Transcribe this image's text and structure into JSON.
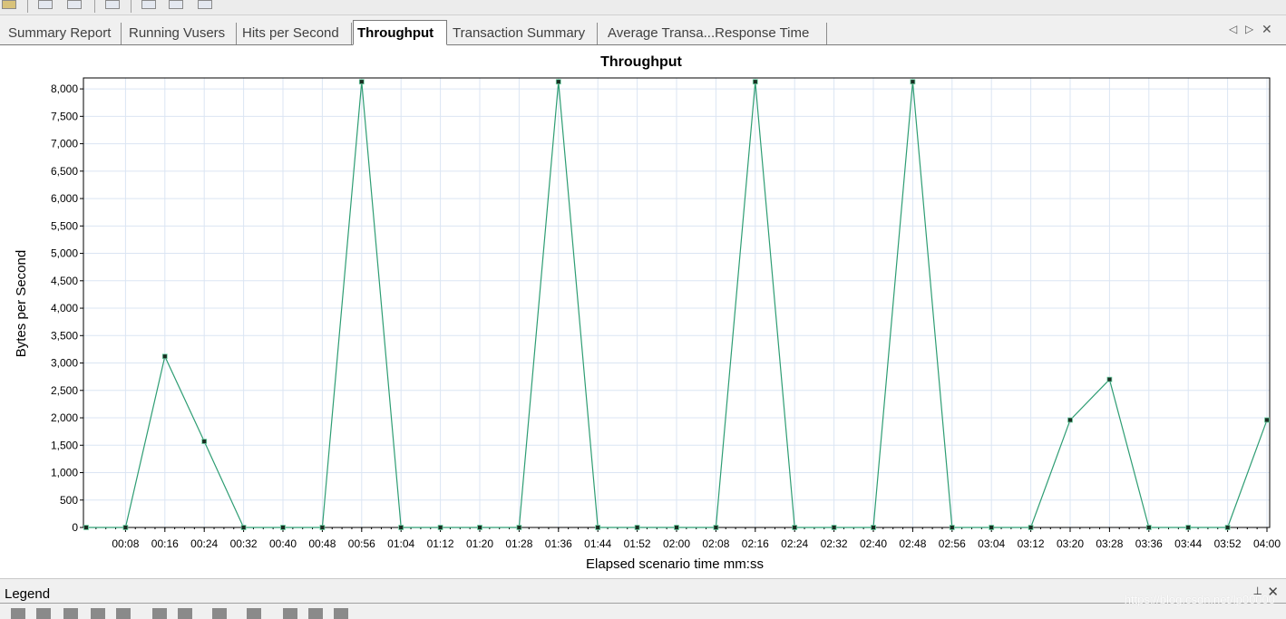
{
  "tabs": [
    {
      "label": "Summary Report",
      "active": false
    },
    {
      "label": "Running Vusers",
      "active": false
    },
    {
      "label": "Hits per Second",
      "active": false
    },
    {
      "label": "Throughput",
      "active": true
    },
    {
      "label": "Transaction Summary",
      "active": false
    },
    {
      "label": "Average Transa...Response Time",
      "active": false
    }
  ],
  "tab_controls": {
    "prev": "◁",
    "next": "▷",
    "close": "✕"
  },
  "legend": {
    "title": "Legend",
    "pin": "⊥",
    "close": "✕"
  },
  "watermark": "https://blog.csdn.net/lp00000",
  "colors": {
    "series": "#2e9d73",
    "marker": "#1a2e22",
    "grid": "#dbe5f3"
  },
  "chart_data": {
    "type": "line",
    "title": "Throughput",
    "xlabel": "Elapsed scenario time mm:ss",
    "ylabel": "Bytes per Second",
    "ylim": [
      0,
      8200
    ],
    "yticks": [
      0,
      500,
      1000,
      1500,
      2000,
      2500,
      3000,
      3500,
      4000,
      4500,
      5000,
      5500,
      6000,
      6500,
      7000,
      7500,
      8000
    ],
    "ytick_labels": [
      "0",
      "500",
      "1,000",
      "1,500",
      "2,000",
      "2,500",
      "3,000",
      "3,500",
      "4,000",
      "4,500",
      "5,000",
      "5,500",
      "6,000",
      "6,500",
      "7,000",
      "7,500",
      "8,000"
    ],
    "xtick_labels": [
      "00:08",
      "00:16",
      "00:24",
      "00:32",
      "00:40",
      "00:48",
      "00:56",
      "01:04",
      "01:12",
      "01:20",
      "01:28",
      "01:36",
      "01:44",
      "01:52",
      "02:00",
      "02:08",
      "02:16",
      "02:24",
      "02:32",
      "02:40",
      "02:48",
      "02:56",
      "03:04",
      "03:12",
      "03:20",
      "03:28",
      "03:36",
      "03:44",
      "03:52",
      "04:00"
    ],
    "grid": true,
    "series": [
      {
        "x": [
          "00:00",
          "00:08",
          "00:16",
          "00:24",
          "00:32",
          "00:40",
          "00:48",
          "00:56",
          "01:04",
          "01:12",
          "01:20",
          "01:28",
          "01:36",
          "01:44",
          "01:52",
          "02:00",
          "02:08",
          "02:16",
          "02:24",
          "02:32",
          "02:40",
          "02:48",
          "02:56",
          "03:04",
          "03:12",
          "03:20",
          "03:28",
          "03:36",
          "03:44",
          "03:52",
          "04:00"
        ],
        "values": [
          0,
          0,
          3120,
          1570,
          0,
          0,
          0,
          8130,
          0,
          0,
          0,
          0,
          8130,
          0,
          0,
          0,
          0,
          8130,
          0,
          0,
          0,
          8130,
          0,
          0,
          0,
          1960,
          2700,
          0,
          0,
          0,
          1960
        ]
      }
    ]
  }
}
